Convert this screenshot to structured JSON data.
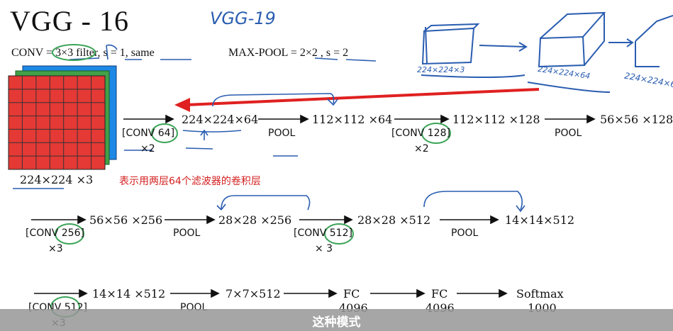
{
  "title": "VGG - 16",
  "handwritten_title": "VGG-19",
  "conv_def": "CONV = 3×3 filter, s = 1, same",
  "pool_def": "MAX-POOL = 2×2 , s = 2",
  "input_dim": "224×224 ×3",
  "hand_dims": [
    "224×224×3",
    "224×224×64",
    "224×224×6"
  ],
  "row1": {
    "conv1": "[CONV 64]",
    "conv1_times": "×2",
    "d1": "224×224×64",
    "pool1": "POOL",
    "d2": "112×112 ×64",
    "conv2": "[CONV 128]",
    "conv2_times": "×2",
    "d3": "112×112 ×128",
    "pool2": "POOL",
    "d4": "56×56 ×128"
  },
  "annotation": "表示用两层64个滤波器的卷积层",
  "row2": {
    "conv3": "[CONV 256]",
    "conv3_times": "×3",
    "d5": "56×56 ×256",
    "pool3": "POOL",
    "d6": "28×28 ×256",
    "conv4": "[CONV 512]",
    "conv4_times": "× 3",
    "d7": "28×28 ×512",
    "pool4": "POOL",
    "d8": "14×14×512"
  },
  "row3": {
    "conv5": "[CONV 512]",
    "conv5_times": "×3",
    "d9": "14×14 ×512",
    "pool5": "POOL",
    "d10": "7×7×512",
    "fc1": "FC",
    "fc1_units": "4096",
    "fc2": "FC",
    "fc2_units": "4096",
    "softmax": "Softmax",
    "softmax_units": "1000"
  },
  "subtitle": "这种模式",
  "colors": {
    "cube_red": "#e53935",
    "cube_green": "#43a047",
    "cube_blue": "#1e88e5",
    "annotation_red": "#d42020",
    "pen_blue": "#2a5db0",
    "circle_green": "#3aa356",
    "subtitle_bg": "#969696"
  }
}
